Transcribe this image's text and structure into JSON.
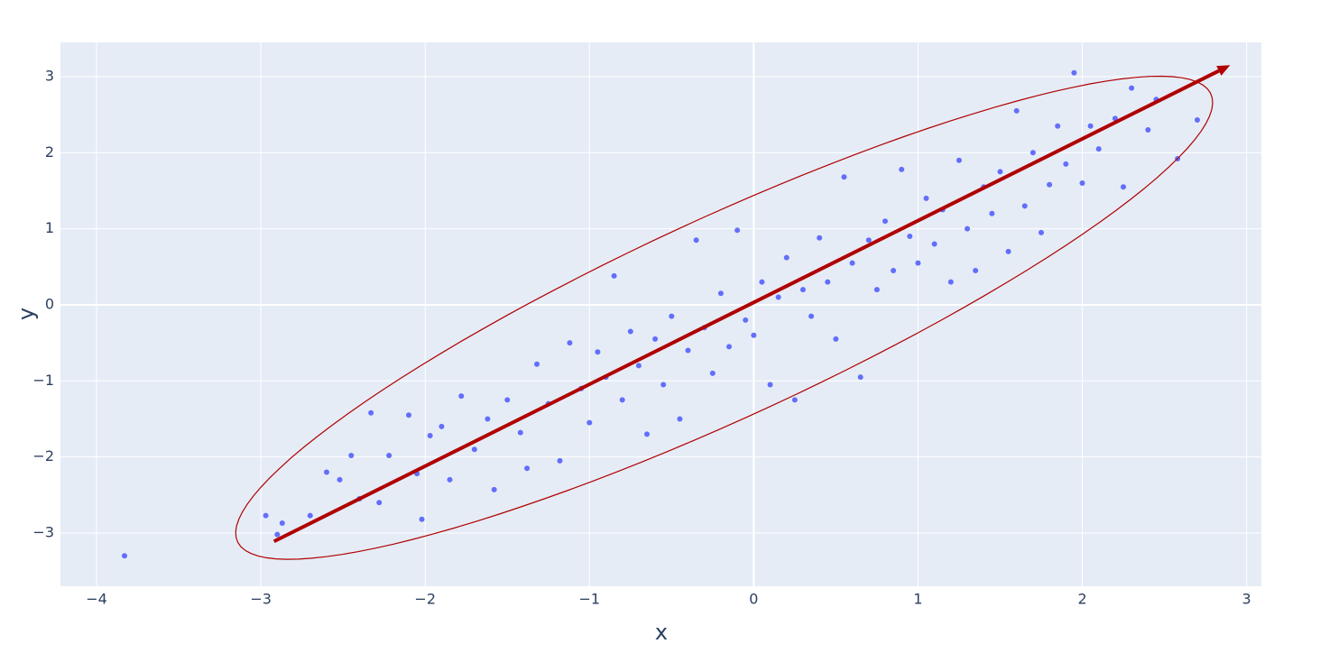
{
  "chart_data": {
    "type": "scatter",
    "x_label": "x",
    "y_label": "y",
    "xlim": [
      -4.22,
      3.09
    ],
    "ylim": [
      -3.7,
      3.45
    ],
    "xticks": [
      {
        "value": -4,
        "label": "−4"
      },
      {
        "value": -3,
        "label": "−3"
      },
      {
        "value": -2,
        "label": "−2"
      },
      {
        "value": -1,
        "label": "−1"
      },
      0,
      1,
      2,
      3
    ],
    "yticks": [
      {
        "value": -3,
        "label": "−3"
      },
      {
        "value": -2,
        "label": "−2"
      },
      {
        "value": -1,
        "label": "−1"
      },
      0,
      1,
      2,
      3
    ],
    "grid": true,
    "color": "#636efa",
    "shape_color": "#b00000",
    "x": [
      -3.83,
      -2.97,
      -2.9,
      -2.87,
      -2.7,
      -2.6,
      -2.52,
      -2.45,
      -2.4,
      -2.33,
      -2.28,
      -2.22,
      -2.1,
      -2.05,
      -2.02,
      -1.97,
      -1.9,
      -1.85,
      -1.78,
      -1.7,
      -1.62,
      -1.58,
      -1.5,
      -1.42,
      -1.38,
      -1.32,
      -1.25,
      -1.18,
      -1.12,
      -1.05,
      -1.0,
      -0.95,
      -0.9,
      -0.85,
      -0.8,
      -0.75,
      -0.7,
      -0.65,
      -0.6,
      -0.55,
      -0.5,
      -0.45,
      -0.4,
      -0.35,
      -0.3,
      -0.25,
      -0.2,
      -0.15,
      -0.1,
      -0.05,
      0,
      0.05,
      0.1,
      0.15,
      0.2,
      0.25,
      0.3,
      0.35,
      0.4,
      0.45,
      0.5,
      0.55,
      0.6,
      0.65,
      0.7,
      0.75,
      0.8,
      0.85,
      0.9,
      0.95,
      1.0,
      1.05,
      1.1,
      1.15,
      1.2,
      1.25,
      1.3,
      1.35,
      1.4,
      1.45,
      1.5,
      1.55,
      1.6,
      1.65,
      1.7,
      1.75,
      1.8,
      1.85,
      1.9,
      1.95,
      2.0,
      2.05,
      2.1,
      2.2,
      2.25,
      2.3,
      2.4,
      2.45,
      2.58,
      2.7
    ],
    "values": [
      -3.3,
      -2.77,
      -3.02,
      -2.87,
      -2.77,
      -2.2,
      -2.3,
      -1.98,
      -2.55,
      -1.42,
      -2.6,
      -1.98,
      -1.45,
      -2.22,
      -2.82,
      -1.72,
      -1.6,
      -2.3,
      -1.2,
      -1.9,
      -1.5,
      -2.43,
      -1.25,
      -1.68,
      -2.15,
      -0.78,
      -1.3,
      -2.05,
      -0.5,
      -1.1,
      -1.55,
      -0.62,
      -0.95,
      0.38,
      -1.25,
      -0.35,
      -0.8,
      -1.7,
      -0.45,
      -1.05,
      -0.15,
      -1.5,
      -0.6,
      0.85,
      -0.3,
      -0.9,
      0.15,
      -0.55,
      0.98,
      -0.2,
      -0.4,
      0.3,
      -1.05,
      0.1,
      0.62,
      -1.25,
      0.2,
      -0.15,
      0.88,
      0.3,
      -0.45,
      1.68,
      0.55,
      -0.95,
      0.85,
      0.2,
      1.1,
      0.45,
      1.78,
      0.9,
      0.55,
      1.4,
      0.8,
      1.25,
      0.3,
      1.9,
      1.0,
      0.45,
      1.55,
      1.2,
      1.75,
      0.7,
      2.55,
      1.3,
      2.0,
      0.95,
      1.58,
      2.35,
      1.85,
      3.05,
      1.6,
      2.35,
      2.05,
      2.45,
      1.55,
      2.85,
      2.3,
      2.7,
      1.92,
      2.43
    ],
    "ellipse": {
      "center": [
        -0.18,
        -0.17
      ],
      "axis_a": [
        2.88,
        3.1
      ],
      "axis_b": [
        -0.74,
        0.69
      ]
    },
    "arrow": {
      "x": [
        -2.92,
        2.9
      ],
      "y": [
        -3.11,
        3.15
      ]
    }
  }
}
